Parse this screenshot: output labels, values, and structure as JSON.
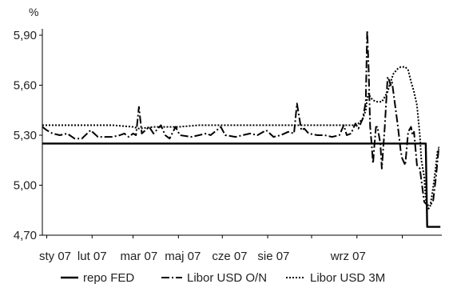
{
  "chart_data": {
    "type": "line",
    "title": "",
    "xlabel": "",
    "ylabel": "",
    "y_unit_label": "%",
    "ylim": [
      4.7,
      5.9
    ],
    "y_ticks": [
      "5,90",
      "5,60",
      "5,30",
      "5,00",
      "4,70"
    ],
    "y_tick_values": [
      5.9,
      5.6,
      5.3,
      5.0,
      4.7
    ],
    "x_range": [
      "2006-12-29",
      "2007-09-28"
    ],
    "x_tick_labels": [
      "sty 07",
      "lut 07",
      "mar 07",
      "maj 07",
      "cze 07",
      "sie 07",
      "wrz 07"
    ],
    "x_tick_dates": [
      "2007-01-01",
      "2007-02-01",
      "2007-03-01",
      "2007-04-01",
      "2007-05-01",
      "2007-06-01",
      "2007-07-01",
      "2007-08-01",
      "2007-09-01"
    ],
    "x_tick_label_dates": [
      "2006-12-29",
      "2007-02-01",
      "2007-03-05",
      "2007-04-04",
      "2007-05-06",
      "2007-06-05",
      "2007-07-26"
    ],
    "grid": false,
    "legend_placement": "bottom",
    "series": [
      {
        "name": "repo FED",
        "style": "solid",
        "color": "#000000",
        "points": [
          [
            "2006-12-29",
            5.25
          ],
          [
            "2007-09-16",
            5.25
          ],
          [
            "2007-09-17",
            5.25
          ],
          [
            "2007-09-18",
            4.75
          ],
          [
            "2007-09-27",
            4.75
          ]
        ]
      },
      {
        "name": "Libor USD O/N",
        "style": "dash-dot",
        "color": "#000000",
        "points": [
          [
            "2006-12-29",
            5.35
          ],
          [
            "2007-01-01",
            5.33
          ],
          [
            "2007-01-05",
            5.31
          ],
          [
            "2007-01-10",
            5.3
          ],
          [
            "2007-01-15",
            5.31
          ],
          [
            "2007-01-20",
            5.28
          ],
          [
            "2007-01-25",
            5.28
          ],
          [
            "2007-01-31",
            5.33
          ],
          [
            "2007-02-05",
            5.29
          ],
          [
            "2007-02-15",
            5.29
          ],
          [
            "2007-02-20",
            5.3
          ],
          [
            "2007-02-23",
            5.31
          ],
          [
            "2007-02-26",
            5.29
          ],
          [
            "2007-03-01",
            5.31
          ],
          [
            "2007-03-03",
            5.3
          ],
          [
            "2007-03-05",
            5.47
          ],
          [
            "2007-03-07",
            5.31
          ],
          [
            "2007-03-12",
            5.35
          ],
          [
            "2007-03-15",
            5.31
          ],
          [
            "2007-03-20",
            5.36
          ],
          [
            "2007-03-23",
            5.3
          ],
          [
            "2007-03-26",
            5.28
          ],
          [
            "2007-03-30",
            5.35
          ],
          [
            "2007-04-02",
            5.3
          ],
          [
            "2007-04-10",
            5.29
          ],
          [
            "2007-04-15",
            5.3
          ],
          [
            "2007-04-20",
            5.31
          ],
          [
            "2007-04-23",
            5.3
          ],
          [
            "2007-04-30",
            5.35
          ],
          [
            "2007-05-03",
            5.3
          ],
          [
            "2007-05-10",
            5.29
          ],
          [
            "2007-05-15",
            5.3
          ],
          [
            "2007-05-20",
            5.31
          ],
          [
            "2007-05-25",
            5.3
          ],
          [
            "2007-05-31",
            5.33
          ],
          [
            "2007-06-05",
            5.29
          ],
          [
            "2007-06-10",
            5.3
          ],
          [
            "2007-06-15",
            5.32
          ],
          [
            "2007-06-19",
            5.31
          ],
          [
            "2007-06-21",
            5.49
          ],
          [
            "2007-06-24",
            5.33
          ],
          [
            "2007-06-26",
            5.34
          ],
          [
            "2007-06-29",
            5.31
          ],
          [
            "2007-07-05",
            5.3
          ],
          [
            "2007-07-10",
            5.3
          ],
          [
            "2007-07-15",
            5.29
          ],
          [
            "2007-07-20",
            5.3
          ],
          [
            "2007-07-23",
            5.36
          ],
          [
            "2007-07-25",
            5.3
          ],
          [
            "2007-07-28",
            5.31
          ],
          [
            "2007-07-31",
            5.37
          ],
          [
            "2007-08-02",
            5.34
          ],
          [
            "2007-08-05",
            5.4
          ],
          [
            "2007-08-07",
            5.5
          ],
          [
            "2007-08-08",
            5.93
          ],
          [
            "2007-08-09",
            5.7
          ],
          [
            "2007-08-10",
            5.35
          ],
          [
            "2007-08-11",
            5.25
          ],
          [
            "2007-08-12",
            5.13
          ],
          [
            "2007-08-13",
            5.25
          ],
          [
            "2007-08-14",
            5.35
          ],
          [
            "2007-08-15",
            5.35
          ],
          [
            "2007-08-17",
            5.25
          ],
          [
            "2007-08-18",
            5.1
          ],
          [
            "2007-08-20",
            5.35
          ],
          [
            "2007-08-22",
            5.65
          ],
          [
            "2007-08-23",
            5.63
          ],
          [
            "2007-08-24",
            5.6
          ],
          [
            "2007-08-25",
            5.62
          ],
          [
            "2007-08-26",
            5.55
          ],
          [
            "2007-08-28",
            5.42
          ],
          [
            "2007-08-29",
            5.35
          ],
          [
            "2007-08-31",
            5.2
          ],
          [
            "2007-09-01",
            5.16
          ],
          [
            "2007-09-03",
            5.12
          ],
          [
            "2007-09-05",
            5.32
          ],
          [
            "2007-09-07",
            5.35
          ],
          [
            "2007-09-08",
            5.3
          ],
          [
            "2007-09-09",
            5.32
          ],
          [
            "2007-09-11",
            5.12
          ],
          [
            "2007-09-13",
            5.1
          ],
          [
            "2007-09-16",
            4.9
          ],
          [
            "2007-09-18",
            4.88
          ],
          [
            "2007-09-20",
            4.88
          ],
          [
            "2007-09-22",
            4.9
          ],
          [
            "2007-09-24",
            5.05
          ],
          [
            "2007-09-26",
            5.23
          ]
        ]
      },
      {
        "name": "Libor USD 3M",
        "style": "dotted",
        "color": "#000000",
        "points": [
          [
            "2006-12-29",
            5.36
          ],
          [
            "2007-01-10",
            5.36
          ],
          [
            "2007-01-20",
            5.36
          ],
          [
            "2007-02-01",
            5.36
          ],
          [
            "2007-02-15",
            5.36
          ],
          [
            "2007-03-01",
            5.35
          ],
          [
            "2007-03-05",
            5.34
          ],
          [
            "2007-03-15",
            5.35
          ],
          [
            "2007-04-01",
            5.35
          ],
          [
            "2007-04-15",
            5.36
          ],
          [
            "2007-05-01",
            5.36
          ],
          [
            "2007-05-15",
            5.36
          ],
          [
            "2007-06-01",
            5.36
          ],
          [
            "2007-06-15",
            5.36
          ],
          [
            "2007-07-01",
            5.36
          ],
          [
            "2007-07-15",
            5.36
          ],
          [
            "2007-07-31",
            5.36
          ],
          [
            "2007-08-02",
            5.37
          ],
          [
            "2007-08-05",
            5.4
          ],
          [
            "2007-08-07",
            5.45
          ],
          [
            "2007-08-08",
            5.52
          ],
          [
            "2007-08-09",
            5.55
          ],
          [
            "2007-08-10",
            5.53
          ],
          [
            "2007-08-12",
            5.51
          ],
          [
            "2007-08-15",
            5.5
          ],
          [
            "2007-08-18",
            5.5
          ],
          [
            "2007-08-20",
            5.53
          ],
          [
            "2007-08-22",
            5.56
          ],
          [
            "2007-08-24",
            5.62
          ],
          [
            "2007-08-26",
            5.67
          ],
          [
            "2007-08-29",
            5.7
          ],
          [
            "2007-08-31",
            5.71
          ],
          [
            "2007-09-03",
            5.71
          ],
          [
            "2007-09-05",
            5.69
          ],
          [
            "2007-09-07",
            5.62
          ],
          [
            "2007-09-09",
            5.56
          ],
          [
            "2007-09-11",
            5.48
          ],
          [
            "2007-09-13",
            5.3
          ],
          [
            "2007-09-14",
            5.15
          ],
          [
            "2007-09-16",
            5.05
          ],
          [
            "2007-09-17",
            4.92
          ],
          [
            "2007-09-18",
            4.85
          ],
          [
            "2007-09-20",
            4.87
          ],
          [
            "2007-09-22",
            4.98
          ],
          [
            "2007-09-24",
            5.12
          ],
          [
            "2007-09-25",
            5.2
          ],
          [
            "2007-09-26",
            5.22
          ]
        ]
      }
    ]
  }
}
